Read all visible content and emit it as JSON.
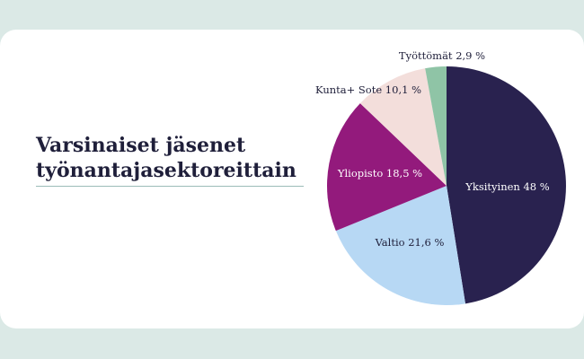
{
  "title": {
    "line1": "Varsinaiset jäsenet",
    "line2": "työnantajasektoreittain"
  },
  "chart_data": {
    "type": "pie",
    "title": "Varsinaiset jäsenet työnantajasektoreittain",
    "unit": "%",
    "slices": [
      {
        "label": "Yksityinen 48 %",
        "value": 48,
        "color": "#29224f",
        "text_color": "#ffffff"
      },
      {
        "label": "Valtio 21,6 %",
        "value": 21.6,
        "color": "#b7d8f4",
        "text_color": "#1f1f3a"
      },
      {
        "label": "Yliopisto 18,5 %",
        "value": 18.5,
        "color": "#931a7c",
        "text_color": "#ffffff"
      },
      {
        "label": "Kunta+ Sote 10,1 %",
        "value": 10.1,
        "color": "#f3dedb",
        "text_color": "#1f1f3a"
      },
      {
        "label": "Työttömät 2,9 %",
        "value": 2.9,
        "color": "#8fc4a6",
        "text_color": "#1f1f3a"
      }
    ]
  }
}
